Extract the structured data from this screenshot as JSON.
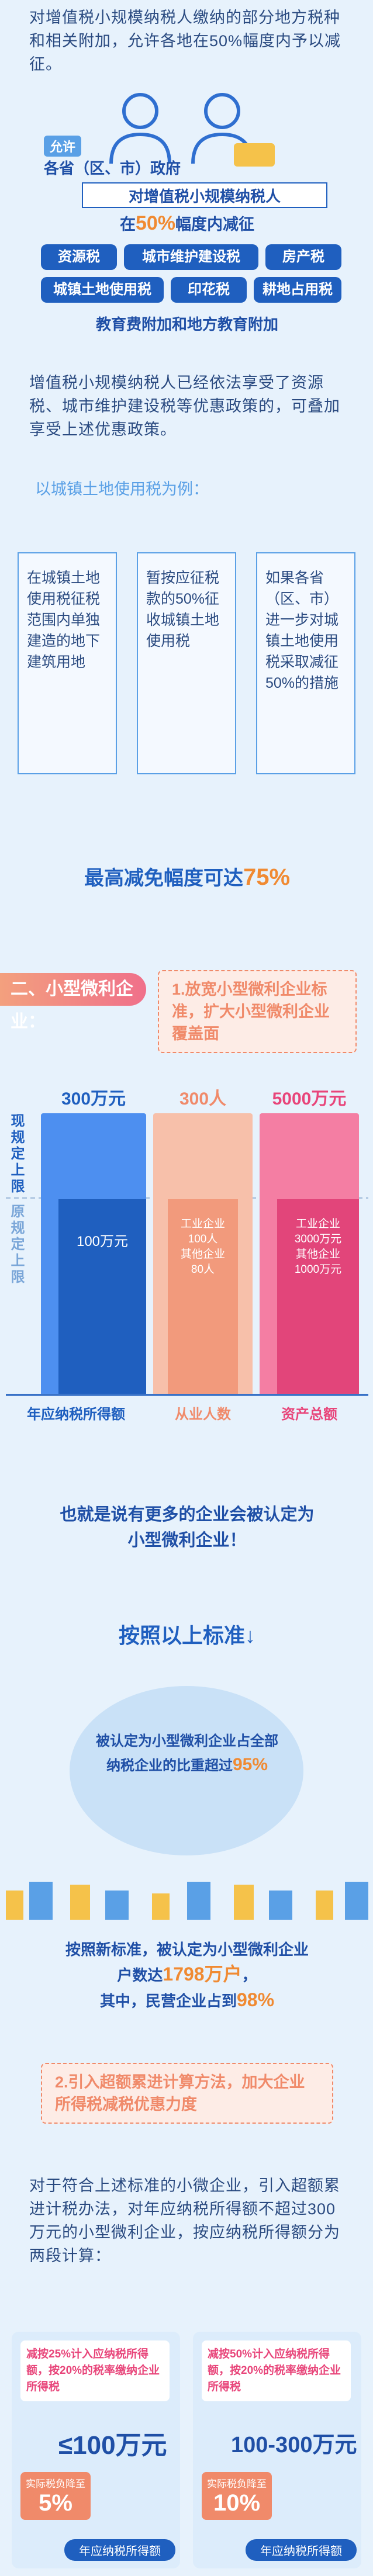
{
  "intro": "对增值税小规模纳税人缴纳的部分地方税种和相关附加，允许各地在50%幅度内予以减征。",
  "illustration": {
    "allow": "允许",
    "government": "各省（区、市）政府",
    "target": "对增值税小规模纳税人",
    "reduction": [
      "在",
      "50%",
      "幅度内减征"
    ],
    "taxes": [
      "资源税",
      "城市维护建设税",
      "房产税",
      "城镇土地使用税",
      "印花税",
      "耕地占用税"
    ],
    "surcharge": "教育费附加和地方教育附加"
  },
  "stacking_note": "增值税小规模纳税人已经依法享受了资源税、城市维护建设税等优惠政策的，可叠加享受上述优惠政策。",
  "example": {
    "heading": "以城镇土地使用税为例：",
    "boxes": [
      "在城镇土地使用税征税范围内单独建造的地下建筑用地",
      "暂按应征税款的50%征收城镇土地使用税",
      "如果各省（区、市）进一步对城镇土地使用税采取减征50%的措施"
    ],
    "conclusion": [
      "最高减免幅度可达",
      "75%"
    ]
  },
  "section2": {
    "title": "二、小型微利企业：",
    "point1": "1.放宽小型微利企业标准，扩大小型微利企业覆盖面",
    "comparison": {
      "current_label": "现规定上限",
      "previous_label": "原规定上限",
      "columns": [
        {
          "current": "300万元",
          "previous": [
            "100万元"
          ],
          "caption": "年应纳税所得额"
        },
        {
          "current": "300人",
          "previous": [
            "工业企业",
            "100人",
            "其他企业",
            "80人"
          ],
          "caption": "从业人数"
        },
        {
          "current": "5000万元",
          "previous": [
            "工业企业",
            "3000万元",
            "其他企业",
            "1000万元"
          ],
          "caption": "资产总额"
        }
      ]
    },
    "summary": [
      "也就是说有更多的企业会被认定为",
      "小型微利企业！"
    ],
    "by_standard": "按照以上标准↓",
    "share": [
      "被认定为小型微利企业占全部",
      "纳税企业的比重超过",
      "95%"
    ],
    "count": [
      "按照新标准，被认定为小型微利企业",
      "户数达",
      "1798万户",
      "，",
      "其中，民营企业占到",
      "98%"
    ],
    "point2": "2.引入超额累进计算方法，加大企业所得税减税优惠力度",
    "method": "对于符合上述标准的小微企业，引入超额累进计税办法，对年应纳税所得额不超过300万元的小型微利企业，按应纳税所得额分为两段计算：",
    "tiers": [
      {
        "rule": "减按25%计入应纳税所得额，按20%的税率缴纳企业所得税",
        "range": "≤100万元",
        "burden_label": "实际税负降至",
        "burden": "5%",
        "caption": "年应纳税所得额"
      },
      {
        "rule": "减按50%计入应纳税所得额，按20%的税率缴纳企业所得税",
        "range": "100-300万元",
        "burden_label": "实际税负降至",
        "burden": "10%",
        "caption": "年应纳税所得额"
      }
    ]
  }
}
